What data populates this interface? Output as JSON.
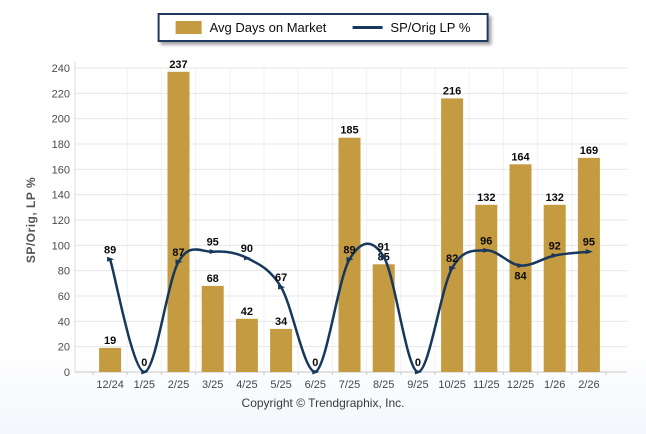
{
  "legend": {
    "items": [
      {
        "label": "Avg Days on Market",
        "swatch": "bar-swatch"
      },
      {
        "label": "SP/Orig LP %",
        "swatch": "line-swatch"
      }
    ]
  },
  "y_axis": {
    "title": "SP/Orig, LP %"
  },
  "footer": {
    "copyright": "Copyright © Trendgraphix, Inc."
  },
  "colors": {
    "bar": "#C49B40",
    "line": "#17375D",
    "grid": "#e7e7e7",
    "grid_vertical": "#f2f2f2",
    "axis": "#c8c8c8",
    "y_tick_label": "#4c4c4c",
    "x_tick_label": "#3e4754",
    "value_label": "#0a0a0a"
  },
  "chart_data": {
    "type": "bar+line",
    "title": "",
    "ylabel": "SP/Orig, LP %",
    "categories": [
      "12/24",
      "1/25",
      "2/25",
      "3/25",
      "4/25",
      "5/25",
      "6/25",
      "7/25",
      "8/25",
      "9/25",
      "10/25",
      "11/25",
      "12/25",
      "1/26",
      "2/26"
    ],
    "series": [
      {
        "name": "Avg Days on Market",
        "type": "bar",
        "values": [
          19,
          0,
          237,
          68,
          42,
          34,
          0,
          185,
          85,
          0,
          216,
          132,
          164,
          132,
          169
        ]
      },
      {
        "name": "SP/Orig LP %",
        "type": "line",
        "values": [
          89,
          0,
          87,
          95,
          90,
          67,
          0,
          89,
          91,
          0,
          82,
          96,
          84,
          92,
          95
        ]
      }
    ],
    "ylim": [
      0,
      240
    ],
    "ytick_step": 20,
    "grid": true,
    "legend_position": "top-center",
    "value_labels": true
  }
}
